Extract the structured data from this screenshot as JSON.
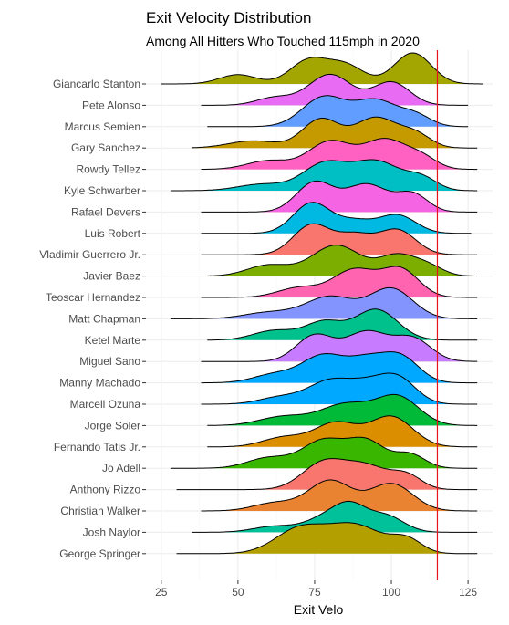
{
  "chart_data": {
    "type": "ridgeline",
    "title": "Exit Velocity Distribution",
    "subtitle": "Among All Hitters Who Touched 115mph in 2020",
    "xlabel": "Exit Velo",
    "ylabel": "",
    "xlim": [
      20,
      133
    ],
    "xticks": [
      25,
      50,
      75,
      100,
      125
    ],
    "reference_line": {
      "x": 115,
      "color": "#e8141b"
    },
    "grid": true,
    "legend": "none",
    "players": [
      {
        "name": "Giancarlo Stanton",
        "color": "#a3a500",
        "range": [
          25,
          130
        ],
        "peaks": [
          [
            50,
            0.3,
            6
          ],
          [
            73,
            0.75,
            6
          ],
          [
            85,
            0.6,
            6
          ],
          [
            107,
            1.0,
            6
          ]
        ]
      },
      {
        "name": "Pete Alonso",
        "color": "#e76bf3",
        "range": [
          38,
          125
        ],
        "peaks": [
          [
            62,
            0.25,
            6
          ],
          [
            80,
            1.0,
            7
          ],
          [
            100,
            0.75,
            6
          ]
        ]
      },
      {
        "name": "Marcus Semien",
        "color": "#619cff",
        "range": [
          40,
          125
        ],
        "peaks": [
          [
            78,
            0.85,
            7
          ],
          [
            95,
            0.75,
            7
          ],
          [
            108,
            0.3,
            5
          ]
        ]
      },
      {
        "name": "Gary Sanchez",
        "color": "#c49a00",
        "range": [
          35,
          128
        ],
        "peaks": [
          [
            55,
            0.2,
            8
          ],
          [
            77,
            0.8,
            6
          ],
          [
            95,
            0.85,
            7
          ],
          [
            108,
            0.35,
            5
          ]
        ]
      },
      {
        "name": "Rowdy Tellez",
        "color": "#ff61c3",
        "range": [
          38,
          128
        ],
        "peaks": [
          [
            60,
            0.25,
            7
          ],
          [
            80,
            0.8,
            7
          ],
          [
            98,
            0.85,
            7
          ],
          [
            110,
            0.3,
            5
          ]
        ]
      },
      {
        "name": "Kyle Schwarber",
        "color": "#00bfc4",
        "range": [
          28,
          128
        ],
        "peaks": [
          [
            58,
            0.2,
            8
          ],
          [
            78,
            0.8,
            7
          ],
          [
            95,
            0.9,
            8
          ],
          [
            110,
            0.35,
            5
          ]
        ]
      },
      {
        "name": "Rafael Devers",
        "color": "#f564e3",
        "range": [
          38,
          128
        ],
        "peaks": [
          [
            75,
            0.85,
            6
          ],
          [
            92,
            0.8,
            7
          ],
          [
            107,
            0.5,
            5
          ]
        ]
      },
      {
        "name": "Luis Robert",
        "color": "#00b9e3",
        "range": [
          38,
          126
        ],
        "peaks": [
          [
            74,
            1.0,
            6
          ],
          [
            88,
            0.4,
            6
          ],
          [
            102,
            0.6,
            6
          ]
        ]
      },
      {
        "name": "Vladimir Guerrero Jr.",
        "color": "#f8766d",
        "range": [
          38,
          128
        ],
        "peaks": [
          [
            74,
            0.85,
            6
          ],
          [
            88,
            0.55,
            6
          ],
          [
            102,
            0.7,
            6
          ]
        ]
      },
      {
        "name": "Javier Baez",
        "color": "#7cae00",
        "range": [
          40,
          128
        ],
        "peaks": [
          [
            60,
            0.3,
            7
          ],
          [
            82,
            0.85,
            8
          ],
          [
            102,
            0.55,
            6
          ],
          [
            112,
            0.25,
            5
          ]
        ]
      },
      {
        "name": "Teoscar Hernandez",
        "color": "#ff64b0",
        "range": [
          38,
          128
        ],
        "peaks": [
          [
            70,
            0.3,
            7
          ],
          [
            88,
            0.85,
            7
          ],
          [
            103,
            0.85,
            6
          ]
        ]
      },
      {
        "name": "Matt Chapman",
        "color": "#8494ff",
        "range": [
          28,
          128
        ],
        "peaks": [
          [
            60,
            0.2,
            8
          ],
          [
            80,
            0.7,
            8
          ],
          [
            100,
            0.95,
            7
          ]
        ]
      },
      {
        "name": "Ketel Marte",
        "color": "#00c08b",
        "range": [
          40,
          128
        ],
        "peaks": [
          [
            62,
            0.3,
            7
          ],
          [
            78,
            0.55,
            6
          ],
          [
            95,
            0.95,
            7
          ]
        ]
      },
      {
        "name": "Miguel Sano",
        "color": "#c77cff",
        "range": [
          38,
          128
        ],
        "peaks": [
          [
            75,
            0.7,
            6
          ],
          [
            92,
            0.8,
            7
          ],
          [
            107,
            0.6,
            6
          ]
        ]
      },
      {
        "name": "Manny Machado",
        "color": "#00a9ff",
        "range": [
          38,
          128
        ],
        "peaks": [
          [
            62,
            0.25,
            7
          ],
          [
            78,
            0.8,
            7
          ],
          [
            92,
            0.6,
            6
          ],
          [
            103,
            0.75,
            6
          ]
        ]
      },
      {
        "name": "Marcell Ozuna",
        "color": "#00a9ff",
        "range": [
          38,
          128
        ],
        "peaks": [
          [
            64,
            0.25,
            7
          ],
          [
            80,
            0.8,
            7
          ],
          [
            92,
            0.55,
            6
          ],
          [
            102,
            0.9,
            6
          ]
        ]
      },
      {
        "name": "Jorge Soler",
        "color": "#00ba38",
        "range": [
          40,
          128
        ],
        "peaks": [
          [
            65,
            0.3,
            8
          ],
          [
            85,
            0.7,
            8
          ],
          [
            102,
            0.95,
            7
          ]
        ]
      },
      {
        "name": "Fernando Tatis Jr.",
        "color": "#db8e00",
        "range": [
          40,
          128
        ],
        "peaks": [
          [
            65,
            0.3,
            7
          ],
          [
            82,
            0.75,
            7
          ],
          [
            100,
            0.95,
            7
          ]
        ]
      },
      {
        "name": "Jo Adell",
        "color": "#39b600",
        "range": [
          28,
          128
        ],
        "peaks": [
          [
            60,
            0.3,
            7
          ],
          [
            78,
            0.8,
            7
          ],
          [
            92,
            0.75,
            6
          ],
          [
            106,
            0.4,
            5
          ]
        ]
      },
      {
        "name": "Anthony Rizzo",
        "color": "#f8766d",
        "range": [
          30,
          128
        ],
        "peaks": [
          [
            78,
            0.9,
            7
          ],
          [
            92,
            0.75,
            7
          ],
          [
            105,
            0.45,
            5
          ]
        ]
      },
      {
        "name": "Christian Walker",
        "color": "#ea8331",
        "range": [
          38,
          128
        ],
        "peaks": [
          [
            62,
            0.25,
            7
          ],
          [
            80,
            0.95,
            7
          ],
          [
            100,
            0.85,
            7
          ]
        ]
      },
      {
        "name": "Josh Naylor",
        "color": "#00c19a",
        "range": [
          35,
          128
        ],
        "peaks": [
          [
            62,
            0.25,
            7
          ],
          [
            80,
            0.7,
            7
          ],
          [
            87,
            0.75,
            5
          ],
          [
            98,
            0.7,
            6
          ]
        ]
      },
      {
        "name": "George Springer",
        "color": "#b3a000",
        "range": [
          30,
          128
        ],
        "peaks": [
          [
            70,
            0.55,
            8
          ],
          [
            88,
            0.65,
            9
          ],
          [
            105,
            0.3,
            5
          ]
        ]
      }
    ]
  }
}
